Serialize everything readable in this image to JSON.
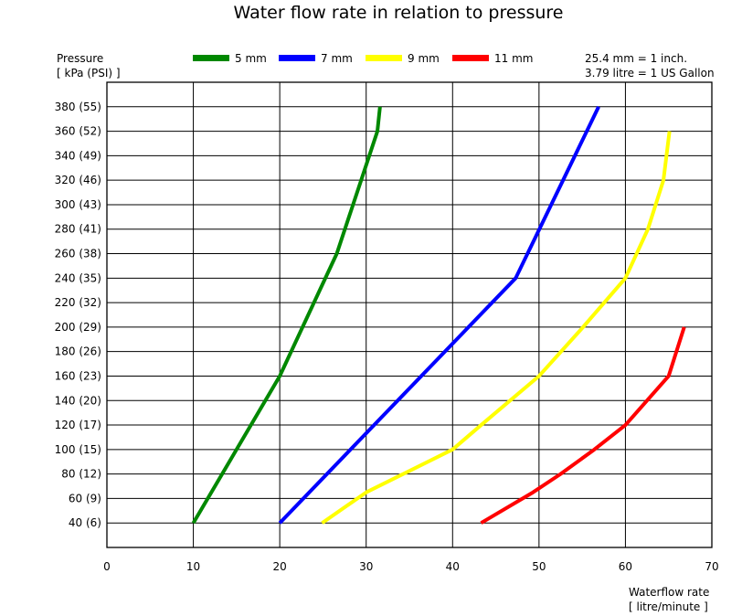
{
  "chart_data": {
    "type": "line",
    "title": "Water flow rate in relation to pressure",
    "ylabel": [
      "Pressure",
      "[ kPa (PSI) ]"
    ],
    "xlabel": [
      "Waterflow rate",
      "[ litre/minute ]"
    ],
    "notes": [
      "25.4 mm = 1 inch.",
      "3.79 litre = 1 US Gallon"
    ],
    "xlim": [
      0,
      70
    ],
    "ylim": [
      20,
      400
    ],
    "grid": true,
    "legend_position": "top",
    "x_ticks": [
      0,
      10,
      20,
      30,
      40,
      50,
      60,
      70
    ],
    "y_ticks": [
      {
        "value": 40,
        "label": "40 (6)"
      },
      {
        "value": 60,
        "label": "60 (9)"
      },
      {
        "value": 80,
        "label": "80 (12)"
      },
      {
        "value": 100,
        "label": "100 (15)"
      },
      {
        "value": 120,
        "label": "120 (17)"
      },
      {
        "value": 140,
        "label": "140 (20)"
      },
      {
        "value": 160,
        "label": "160 (23)"
      },
      {
        "value": 180,
        "label": "180 (26)"
      },
      {
        "value": 200,
        "label": "200 (29)"
      },
      {
        "value": 220,
        "label": "220 (32)"
      },
      {
        "value": 240,
        "label": "240 (35)"
      },
      {
        "value": 260,
        "label": "260 (38)"
      },
      {
        "value": 280,
        "label": "280 (41)"
      },
      {
        "value": 300,
        "label": "300 (43)"
      },
      {
        "value": 320,
        "label": "320 (46)"
      },
      {
        "value": 340,
        "label": "340 (49)"
      },
      {
        "value": 360,
        "label": "360 (52)"
      },
      {
        "value": 380,
        "label": "380 (55)"
      }
    ],
    "series": [
      {
        "name": "5 mm",
        "color": "#008800",
        "points": [
          [
            10,
            40
          ],
          [
            20,
            160
          ],
          [
            26.6,
            260
          ],
          [
            31.3,
            360
          ],
          [
            31.6,
            380
          ]
        ]
      },
      {
        "name": "7 mm",
        "color": "#0000ff",
        "points": [
          [
            20,
            40
          ],
          [
            47.3,
            240
          ],
          [
            56.9,
            380
          ]
        ]
      },
      {
        "name": "9 mm",
        "color": "#ffff00",
        "points": [
          [
            24.9,
            40
          ],
          [
            30,
            65
          ],
          [
            40,
            100
          ],
          [
            43.3,
            120
          ],
          [
            50,
            160
          ],
          [
            55.1,
            200
          ],
          [
            60,
            240
          ],
          [
            62.6,
            280
          ],
          [
            64.4,
            320
          ],
          [
            65.1,
            360
          ]
        ]
      },
      {
        "name": "11 mm",
        "color": "#ff0000",
        "points": [
          [
            43.3,
            40
          ],
          [
            49.3,
            65
          ],
          [
            52.5,
            80
          ],
          [
            56.4,
            100
          ],
          [
            60,
            120
          ],
          [
            65,
            160
          ],
          [
            66.8,
            200
          ]
        ]
      }
    ]
  }
}
